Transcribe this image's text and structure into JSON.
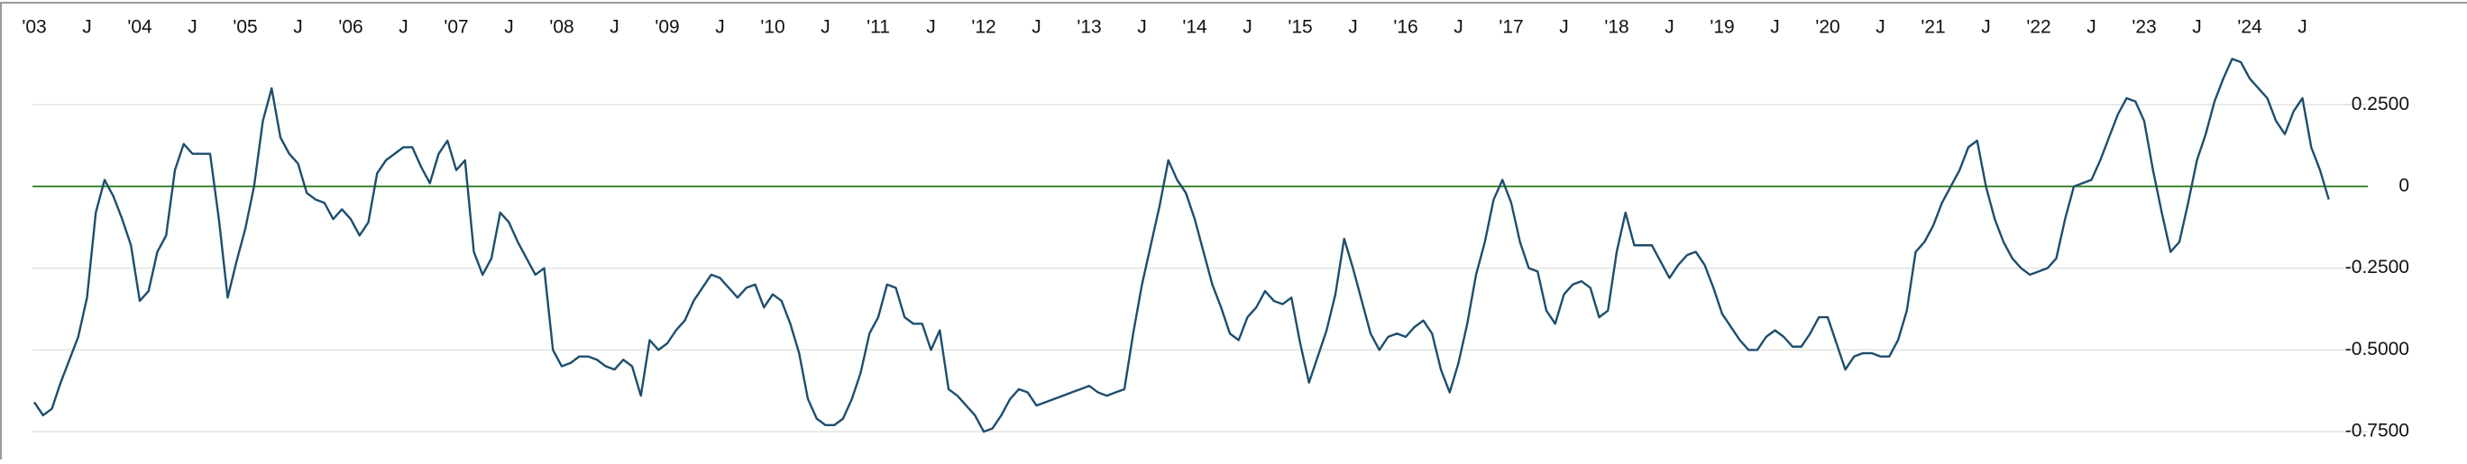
{
  "chart_data": {
    "type": "line",
    "x": [
      "2003-01",
      "2003-02",
      "2003-03",
      "2003-04",
      "2003-05",
      "2003-06",
      "2003-07",
      "2003-08",
      "2003-09",
      "2003-10",
      "2003-11",
      "2003-12",
      "2004-01",
      "2004-02",
      "2004-03",
      "2004-04",
      "2004-05",
      "2004-06",
      "2004-07",
      "2004-08",
      "2004-09",
      "2004-10",
      "2004-11",
      "2004-12",
      "2005-01",
      "2005-02",
      "2005-03",
      "2005-04",
      "2005-05",
      "2005-06",
      "2005-07",
      "2005-08",
      "2005-09",
      "2005-10",
      "2005-11",
      "2005-12",
      "2006-01",
      "2006-02",
      "2006-03",
      "2006-04",
      "2006-05",
      "2006-06",
      "2006-07",
      "2006-08",
      "2006-09",
      "2006-10",
      "2006-11",
      "2006-12",
      "2007-01",
      "2007-02",
      "2007-03",
      "2007-04",
      "2007-05",
      "2007-06",
      "2007-07",
      "2007-08",
      "2007-09",
      "2007-10",
      "2007-11",
      "2007-12",
      "2008-01",
      "2008-02",
      "2008-03",
      "2008-04",
      "2008-05",
      "2008-06",
      "2008-07",
      "2008-08",
      "2008-09",
      "2008-10",
      "2008-11",
      "2008-12",
      "2009-01",
      "2009-02",
      "2009-03",
      "2009-04",
      "2009-05",
      "2009-06",
      "2009-07",
      "2009-08",
      "2009-09",
      "2009-10",
      "2009-11",
      "2009-12",
      "2010-01",
      "2010-02",
      "2010-03",
      "2010-04",
      "2010-05",
      "2010-06",
      "2010-07",
      "2010-08",
      "2010-09",
      "2010-10",
      "2010-11",
      "2010-12",
      "2011-01",
      "2011-02",
      "2011-03",
      "2011-04",
      "2011-05",
      "2011-06",
      "2011-07",
      "2011-08",
      "2011-09",
      "2011-10",
      "2011-11",
      "2011-12",
      "2012-01",
      "2012-02",
      "2012-03",
      "2012-04",
      "2012-05",
      "2012-06",
      "2012-07",
      "2012-08",
      "2012-09",
      "2012-10",
      "2012-11",
      "2012-12",
      "2013-01",
      "2013-02",
      "2013-03",
      "2013-04",
      "2013-05",
      "2013-06",
      "2013-07",
      "2013-08",
      "2013-09",
      "2013-10",
      "2013-11",
      "2013-12",
      "2014-01",
      "2014-02",
      "2014-03",
      "2014-04",
      "2014-05",
      "2014-06",
      "2014-07",
      "2014-08",
      "2014-09",
      "2014-10",
      "2014-11",
      "2014-12",
      "2015-01",
      "2015-02",
      "2015-03",
      "2015-04",
      "2015-05",
      "2015-06",
      "2015-07",
      "2015-08",
      "2015-09",
      "2015-10",
      "2015-11",
      "2015-12",
      "2016-01",
      "2016-02",
      "2016-03",
      "2016-04",
      "2016-05",
      "2016-06",
      "2016-07",
      "2016-08",
      "2016-09",
      "2016-10",
      "2016-11",
      "2016-12",
      "2017-01",
      "2017-02",
      "2017-03",
      "2017-04",
      "2017-05",
      "2017-06",
      "2017-07",
      "2017-08",
      "2017-09",
      "2017-10",
      "2017-11",
      "2017-12",
      "2018-01",
      "2018-02",
      "2018-03",
      "2018-04",
      "2018-05",
      "2018-06",
      "2018-07",
      "2018-08",
      "2018-09",
      "2018-10",
      "2018-11",
      "2018-12",
      "2019-01",
      "2019-02",
      "2019-03",
      "2019-04",
      "2019-05",
      "2019-06",
      "2019-07",
      "2019-08",
      "2019-09",
      "2019-10",
      "2019-11",
      "2019-12",
      "2020-01",
      "2020-02",
      "2020-03",
      "2020-04",
      "2020-05",
      "2020-06",
      "2020-07",
      "2020-08",
      "2020-09",
      "2020-10",
      "2020-11",
      "2020-12",
      "2021-01",
      "2021-02",
      "2021-03",
      "2021-04",
      "2021-05",
      "2021-06",
      "2021-07",
      "2021-08",
      "2021-09",
      "2021-10",
      "2021-11",
      "2021-12",
      "2022-01",
      "2022-02",
      "2022-03",
      "2022-04",
      "2022-05",
      "2022-06",
      "2022-07",
      "2022-08",
      "2022-09",
      "2022-10",
      "2022-11",
      "2022-12",
      "2023-01",
      "2023-02",
      "2023-03",
      "2023-04",
      "2023-05",
      "2023-06",
      "2023-07",
      "2023-08",
      "2023-09",
      "2023-10",
      "2023-11",
      "2023-12",
      "2024-01",
      "2024-02",
      "2024-03",
      "2024-04",
      "2024-05",
      "2024-06",
      "2024-07",
      "2024-08",
      "2024-09",
      "2024-10"
    ],
    "series": [
      {
        "color": "#1d4e6e",
        "values": [
          -0.66,
          -0.7,
          -0.68,
          -0.6,
          -0.53,
          -0.46,
          -0.34,
          -0.08,
          0.02,
          -0.03,
          -0.1,
          -0.18,
          -0.35,
          -0.32,
          -0.2,
          -0.15,
          0.05,
          0.13,
          0.1,
          0.1,
          0.1,
          -0.1,
          -0.34,
          -0.23,
          -0.13,
          0,
          0.2,
          0.3,
          0.15,
          0.1,
          0.07,
          -0.02,
          -0.04,
          -0.05,
          -0.1,
          -0.07,
          -0.1,
          -0.15,
          -0.11,
          0.04,
          0.08,
          0.1,
          0.12,
          0.12,
          0.06,
          0.01,
          0.1,
          0.14,
          0.05,
          0.08,
          -0.2,
          -0.27,
          -0.22,
          -0.08,
          -0.11,
          -0.17,
          -0.22,
          -0.27,
          -0.25,
          -0.5,
          -0.55,
          -0.54,
          -0.52,
          -0.52,
          -0.53,
          -0.55,
          -0.56,
          -0.53,
          -0.55,
          -0.64,
          -0.47,
          -0.5,
          -0.48,
          -0.44,
          -0.41,
          -0.35,
          -0.31,
          -0.27,
          -0.28,
          -0.31,
          -0.34,
          -0.31,
          -0.3,
          -0.37,
          -0.33,
          -0.35,
          -0.42,
          -0.51,
          -0.65,
          -0.71,
          -0.73,
          -0.73,
          -0.71,
          -0.65,
          -0.57,
          -0.45,
          -0.4,
          -0.3,
          -0.31,
          -0.4,
          -0.42,
          -0.42,
          -0.5,
          -0.44,
          -0.62,
          -0.64,
          -0.67,
          -0.7,
          -0.75,
          -0.74,
          -0.7,
          -0.65,
          -0.62,
          -0.63,
          -0.67,
          -0.66,
          -0.65,
          -0.64,
          -0.63,
          -0.62,
          -0.61,
          -0.63,
          -0.64,
          -0.63,
          -0.62,
          -0.45,
          -0.3,
          -0.18,
          -0.06,
          0.08,
          0.02,
          -0.02,
          -0.1,
          -0.2,
          -0.3,
          -0.37,
          -0.45,
          -0.47,
          -0.4,
          -0.37,
          -0.32,
          -0.35,
          -0.36,
          -0.34,
          -0.48,
          -0.6,
          -0.52,
          -0.44,
          -0.33,
          -0.16,
          -0.25,
          -0.35,
          -0.45,
          -0.5,
          -0.46,
          -0.45,
          -0.46,
          -0.43,
          -0.41,
          -0.45,
          -0.56,
          -0.63,
          -0.54,
          -0.42,
          -0.27,
          -0.17,
          -0.04,
          0.02,
          -0.05,
          -0.17,
          -0.25,
          -0.26,
          -0.38,
          -0.42,
          -0.33,
          -0.3,
          -0.29,
          -0.31,
          -0.4,
          -0.38,
          -0.2,
          -0.08,
          -0.18,
          -0.18,
          -0.18,
          -0.23,
          -0.28,
          -0.24,
          -0.21,
          -0.2,
          -0.24,
          -0.31,
          -0.39,
          -0.43,
          -0.47,
          -0.5,
          -0.5,
          -0.46,
          -0.44,
          -0.46,
          -0.49,
          -0.49,
          -0.45,
          -0.4,
          -0.4,
          -0.48,
          -0.56,
          -0.52,
          -0.51,
          -0.51,
          -0.52,
          -0.52,
          -0.47,
          -0.38,
          -0.2,
          -0.17,
          -0.12,
          -0.05,
          0,
          0.05,
          0.12,
          0.14,
          0,
          -0.1,
          -0.17,
          -0.22,
          -0.25,
          -0.27,
          -0.26,
          -0.25,
          -0.22,
          -0.1,
          0,
          0.01,
          0.02,
          0.08,
          0.15,
          0.22,
          0.27,
          0.26,
          0.2,
          0.05,
          -0.08,
          -0.2,
          -0.17,
          -0.05,
          0.08,
          0.16,
          0.26,
          0.33,
          0.39,
          0.38,
          0.33,
          0.3,
          0.27,
          0.2,
          0.16,
          0.23,
          0.27,
          0.12,
          0.05,
          -0.04
        ]
      }
    ],
    "xticks": [
      {
        "value": "2003-01",
        "label": "'03"
      },
      {
        "value": "2003-07",
        "label": "J"
      },
      {
        "value": "2004-01",
        "label": "'04"
      },
      {
        "value": "2004-07",
        "label": "J"
      },
      {
        "value": "2005-01",
        "label": "'05"
      },
      {
        "value": "2005-07",
        "label": "J"
      },
      {
        "value": "2006-01",
        "label": "'06"
      },
      {
        "value": "2006-07",
        "label": "J"
      },
      {
        "value": "2007-01",
        "label": "'07"
      },
      {
        "value": "2007-07",
        "label": "J"
      },
      {
        "value": "2008-01",
        "label": "'08"
      },
      {
        "value": "2008-07",
        "label": "J"
      },
      {
        "value": "2009-01",
        "label": "'09"
      },
      {
        "value": "2009-07",
        "label": "J"
      },
      {
        "value": "2010-01",
        "label": "'10"
      },
      {
        "value": "2010-07",
        "label": "J"
      },
      {
        "value": "2011-01",
        "label": "'11"
      },
      {
        "value": "2011-07",
        "label": "J"
      },
      {
        "value": "2012-01",
        "label": "'12"
      },
      {
        "value": "2012-07",
        "label": "J"
      },
      {
        "value": "2013-01",
        "label": "'13"
      },
      {
        "value": "2013-07",
        "label": "J"
      },
      {
        "value": "2014-01",
        "label": "'14"
      },
      {
        "value": "2014-07",
        "label": "J"
      },
      {
        "value": "2015-01",
        "label": "'15"
      },
      {
        "value": "2015-07",
        "label": "J"
      },
      {
        "value": "2016-01",
        "label": "'16"
      },
      {
        "value": "2016-07",
        "label": "J"
      },
      {
        "value": "2017-01",
        "label": "'17"
      },
      {
        "value": "2017-07",
        "label": "J"
      },
      {
        "value": "2018-01",
        "label": "'18"
      },
      {
        "value": "2018-07",
        "label": "J"
      },
      {
        "value": "2019-01",
        "label": "'19"
      },
      {
        "value": "2019-07",
        "label": "J"
      },
      {
        "value": "2020-01",
        "label": "'20"
      },
      {
        "value": "2020-07",
        "label": "J"
      },
      {
        "value": "2021-01",
        "label": "'21"
      },
      {
        "value": "2021-07",
        "label": "J"
      },
      {
        "value": "2022-01",
        "label": "'22"
      },
      {
        "value": "2022-07",
        "label": "J"
      },
      {
        "value": "2023-01",
        "label": "'23"
      },
      {
        "value": "2023-07",
        "label": "J"
      },
      {
        "value": "2024-01",
        "label": "'24"
      },
      {
        "value": "2024-07",
        "label": "J"
      }
    ],
    "ylim": [
      -0.78,
      0.46
    ],
    "yticks": [
      {
        "value": 0.25,
        "label": "0.2500"
      },
      0,
      {
        "value": -0.25,
        "label": "-0.2500"
      },
      {
        "value": -0.5,
        "label": "-0.5000"
      },
      {
        "value": -0.75,
        "label": "-0.7500"
      }
    ],
    "grid": true,
    "grid_color": "#e3e3e3",
    "zero_line_color": "#3d8a2c"
  }
}
